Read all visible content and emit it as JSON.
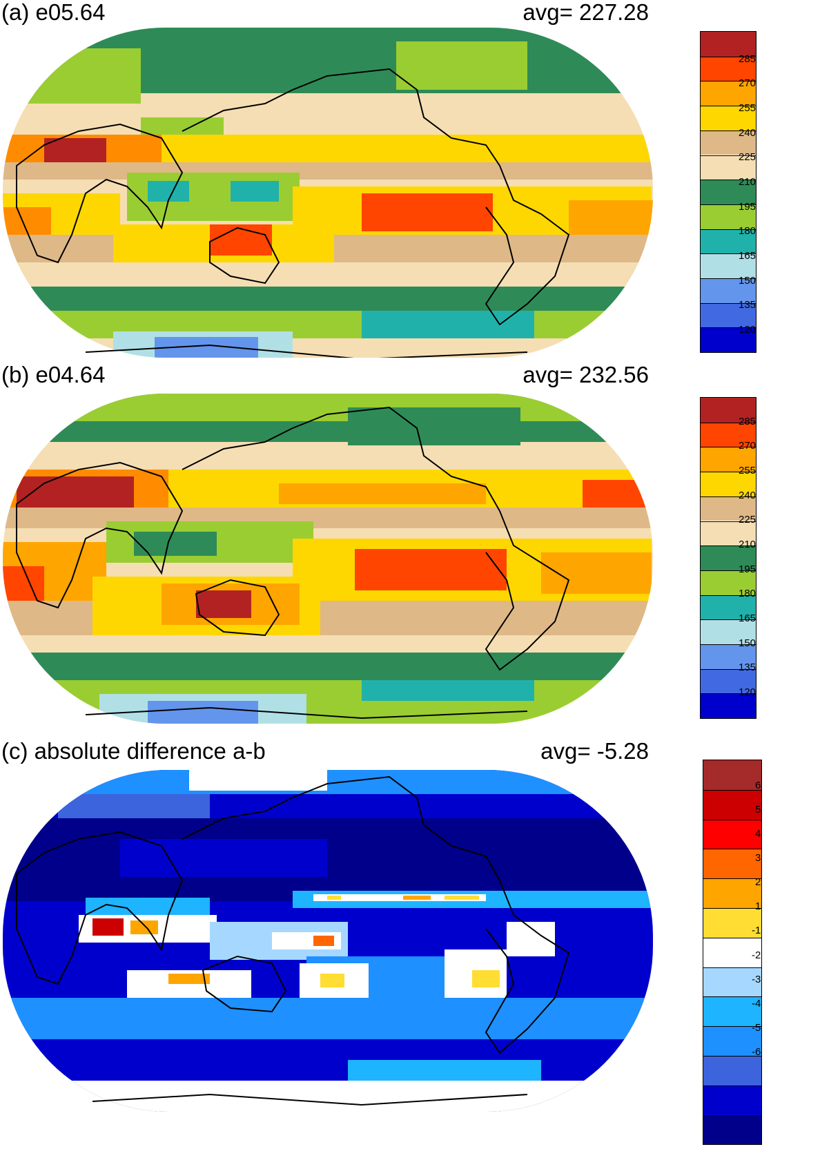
{
  "panels": [
    {
      "id": "a",
      "title": "(a) e05.64",
      "avg": "avg=  227.28",
      "colorbar": {
        "labels": [
          "285",
          "270",
          "255",
          "240",
          "225",
          "210",
          "195",
          "180",
          "165",
          "150",
          "135",
          "120"
        ],
        "colors": [
          "#b22222",
          "#ff4500",
          "#ffa500",
          "#ffd700",
          "#deb887",
          "#f5deb3",
          "#2e8b57",
          "#9acd32",
          "#20b2aa",
          "#b0e0e6",
          "#6495ed",
          "#4169e1",
          "#0000cd"
        ]
      }
    },
    {
      "id": "b",
      "title": "(b) e04.64",
      "avg": "avg=  232.56",
      "colorbar": {
        "labels": [
          "285",
          "270",
          "255",
          "240",
          "225",
          "210",
          "195",
          "180",
          "165",
          "150",
          "135",
          "120"
        ],
        "colors": [
          "#b22222",
          "#ff4500",
          "#ffa500",
          "#ffd700",
          "#deb887",
          "#f5deb3",
          "#2e8b57",
          "#9acd32",
          "#20b2aa",
          "#b0e0e6",
          "#6495ed",
          "#4169e1",
          "#0000cd"
        ]
      }
    },
    {
      "id": "c",
      "title": "(c) absolute difference a-b",
      "avg": "avg=   -5.28",
      "colorbar": {
        "labels": [
          "6",
          "5",
          "4",
          "3",
          "2",
          "1",
          "-1",
          "-2",
          "-3",
          "-4",
          "-5",
          "-6"
        ],
        "colors": [
          "#a52a2a",
          "#cc0000",
          "#ff0000",
          "#ff6600",
          "#ffa500",
          "#ffdd33",
          "#ffffff",
          "#a6d8ff",
          "#1eb4ff",
          "#1e90ff",
          "#3c64dc",
          "#0000cd",
          "#00008b"
        ]
      }
    }
  ]
}
